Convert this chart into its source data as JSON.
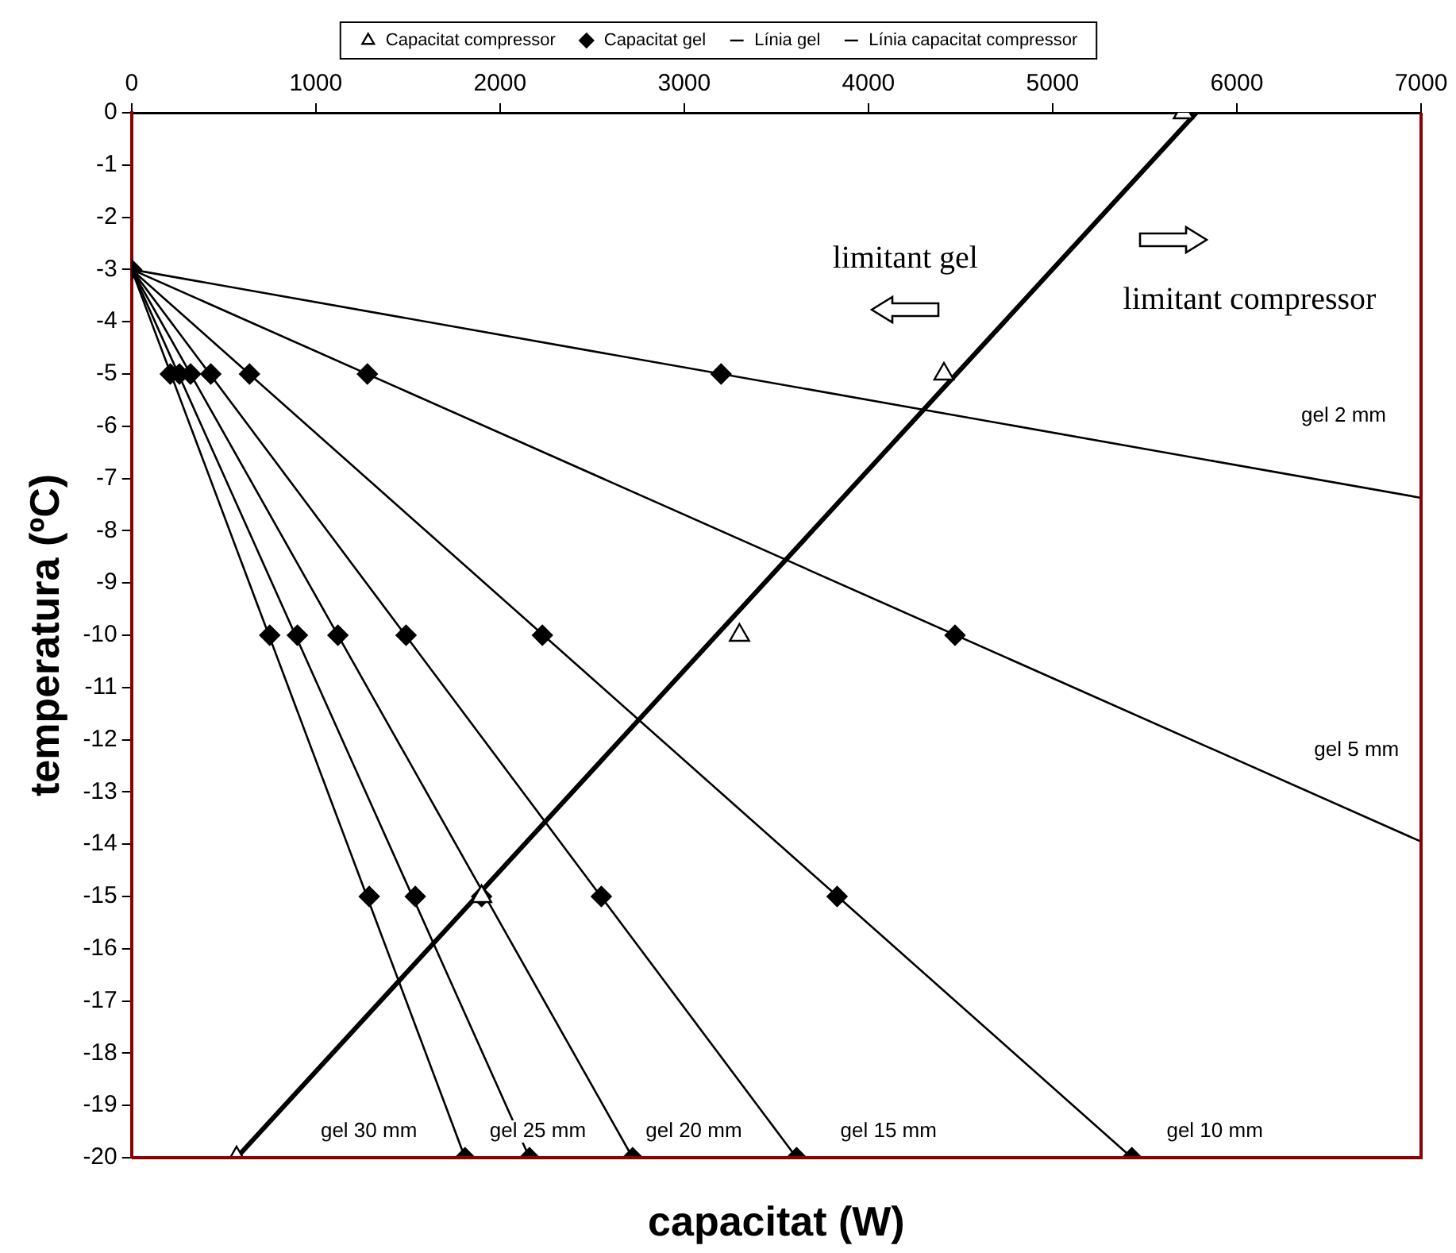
{
  "chart_data": {
    "type": "scatter",
    "xlabel": "capacitat (W)",
    "ylabel": "temperatura (ºC)",
    "xlim": [
      0,
      7000
    ],
    "xticks": [
      0,
      1000,
      2000,
      3000,
      4000,
      5000,
      6000,
      7000
    ],
    "ylim": [
      -20,
      0
    ],
    "yticks": [
      0,
      -1,
      -2,
      -3,
      -4,
      -5,
      -6,
      -7,
      -8,
      -9,
      -10,
      -11,
      -12,
      -13,
      -14,
      -15,
      -16,
      -17,
      -18,
      -19,
      -20
    ],
    "grid": false,
    "legend": "top",
    "series": [
      {
        "name": "Capacitat gel",
        "marker": "diamond",
        "color": "#000000",
        "x": [
          0,
          3200,
          1280,
          640,
          430,
          320,
          260,
          210,
          4470,
          2230,
          1490,
          1120,
          900,
          750,
          3830,
          2550,
          1900,
          1540,
          1290,
          5430,
          3610,
          2720,
          2160,
          1810
        ],
        "values": [
          -3,
          -5,
          -5,
          -5,
          -5,
          -5,
          -5,
          -5,
          -10,
          -10,
          -10,
          -10,
          -10,
          -10,
          -15,
          -15,
          -15,
          -15,
          -15,
          -20,
          -20,
          -20,
          -20,
          -20
        ]
      },
      {
        "name": "Capacitat compressor",
        "marker": "triangle",
        "color": "#000000",
        "x": [
          5710,
          4410,
          3300,
          1900,
          570
        ],
        "values": [
          0,
          -5,
          -10,
          -15,
          -20
        ]
      },
      {
        "name": "Línia gel",
        "type": "line",
        "marker": "none",
        "color": "#000000",
        "x": [
          0,
          7000
        ],
        "values": [
          -3,
          -7.37
        ]
      },
      {
        "type": "line",
        "marker": "none",
        "color": "#000000",
        "x": [
          0,
          7000
        ],
        "values": [
          -3,
          -13.95
        ]
      },
      {
        "type": "line",
        "marker": "none",
        "color": "#000000",
        "x": [
          0,
          5430
        ],
        "values": [
          -3,
          -20
        ]
      },
      {
        "type": "line",
        "marker": "none",
        "color": "#000000",
        "x": [
          0,
          3610
        ],
        "values": [
          -3,
          -20
        ]
      },
      {
        "type": "line",
        "marker": "none",
        "color": "#000000",
        "x": [
          0,
          2720
        ],
        "values": [
          -3,
          -20
        ]
      },
      {
        "type": "line",
        "marker": "none",
        "color": "#000000",
        "x": [
          0,
          2160
        ],
        "values": [
          -3,
          -20
        ]
      },
      {
        "type": "line",
        "marker": "none",
        "color": "#000000",
        "x": [
          0,
          1810
        ],
        "values": [
          -3,
          -20
        ]
      },
      {
        "name": "Línia capacitat compressor",
        "type": "line",
        "marker": "none",
        "color": "#000000",
        "x": [
          570,
          5780
        ],
        "values": [
          -20,
          0
        ]
      }
    ],
    "annotations": [
      "gel 2 mm",
      "gel 5 mm",
      "gel 10 mm",
      "gel 15 mm",
      "gel 20 mm",
      "gel 25 mm",
      "gel 30 mm",
      "limitant gel",
      "limitant compressor"
    ]
  }
}
